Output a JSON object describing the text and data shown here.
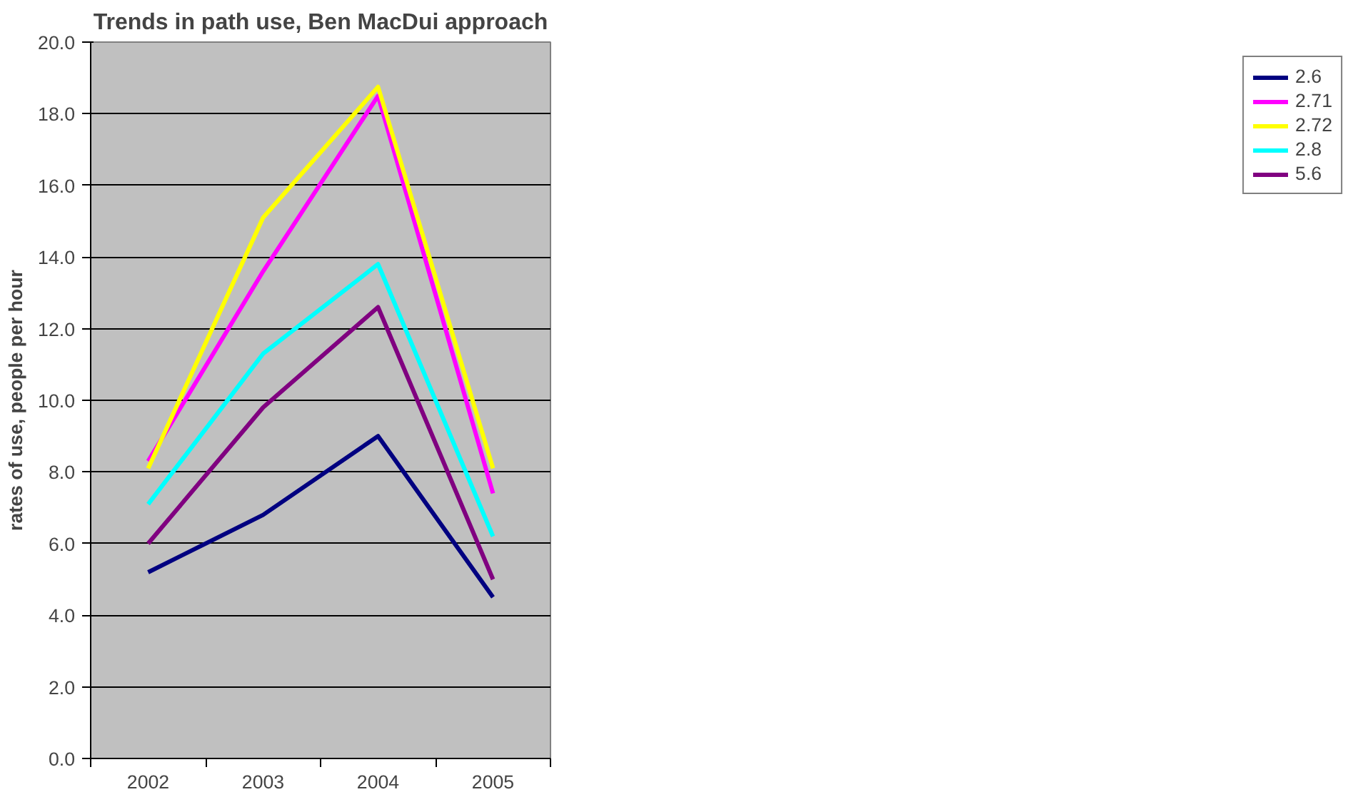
{
  "chart_data": {
    "type": "line",
    "title": "Trends in path use, Ben MacDui approach",
    "ylabel": "rates of use, people per hour",
    "categories": [
      "2002",
      "2003",
      "2004",
      "2005"
    ],
    "series": [
      {
        "name": "2.6",
        "color": "#000080",
        "values": [
          5.2,
          6.8,
          9.0,
          4.5
        ]
      },
      {
        "name": "2.71",
        "color": "#ff00ff",
        "values": [
          8.3,
          13.6,
          18.5,
          7.4
        ]
      },
      {
        "name": "2.72",
        "color": "#ffff00",
        "values": [
          8.1,
          15.1,
          18.75,
          8.1
        ]
      },
      {
        "name": "2.8",
        "color": "#00ffff",
        "values": [
          7.1,
          11.3,
          13.8,
          6.2
        ]
      },
      {
        "name": "5.6",
        "color": "#800080",
        "values": [
          6.0,
          9.8,
          12.6,
          5.0
        ]
      }
    ],
    "ylim": [
      0,
      20
    ],
    "yticks": [
      {
        "value": 0,
        "label": "0.0"
      },
      {
        "value": 2,
        "label": "2.0"
      },
      {
        "value": 4,
        "label": "4.0"
      },
      {
        "value": 6,
        "label": "6.0"
      },
      {
        "value": 8,
        "label": "8.0"
      },
      {
        "value": 10,
        "label": "10.0"
      },
      {
        "value": 12,
        "label": "12.0"
      },
      {
        "value": 14,
        "label": "14.0"
      },
      {
        "value": 16,
        "label": "16.0"
      },
      {
        "value": 18,
        "label": "18.0"
      },
      {
        "value": 20,
        "label": "20.0"
      }
    ],
    "grid": "y",
    "legend": "right",
    "marker": "none",
    "line_style": "solid"
  }
}
